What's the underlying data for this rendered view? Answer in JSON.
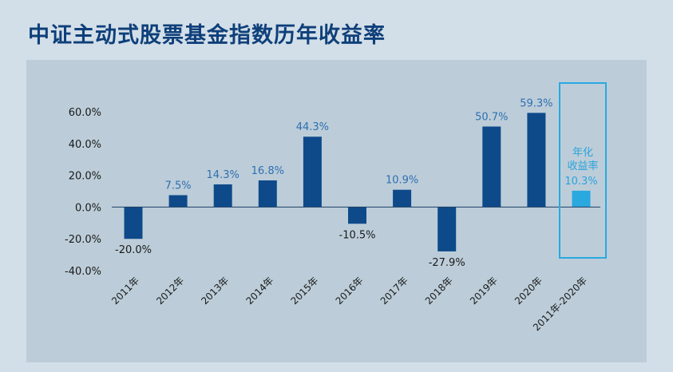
{
  "title": "中证主动式股票基金指数历年收益率",
  "chart_data": {
    "type": "bar",
    "title": "中证主动式股票基金指数历年收益率",
    "categories": [
      "2011年",
      "2012年",
      "2013年",
      "2014年",
      "2015年",
      "2016年",
      "2017年",
      "2018年",
      "2019年",
      "2020年",
      "2011年-2020年"
    ],
    "values": [
      -20.0,
      7.5,
      14.3,
      16.8,
      44.3,
      -10.5,
      10.9,
      -27.9,
      50.7,
      59.3,
      10.3
    ],
    "value_labels": [
      "-20.0%",
      "7.5%",
      "14.3%",
      "16.8%",
      "44.3%",
      "-10.5%",
      "10.9%",
      "-27.9%",
      "50.7%",
      "59.3%",
      "10.3%"
    ],
    "ylim": [
      -40,
      60
    ],
    "yticks": [
      60,
      40,
      20,
      0,
      -20,
      -40
    ],
    "ytick_labels": [
      "60.0%",
      "40.0%",
      "20.0%",
      "0.0%",
      "-20.0%",
      "-40.0%"
    ],
    "highlight": {
      "category": "2011年-2020年",
      "annotation_line1": "年化",
      "annotation_line2": "收益率"
    },
    "colors": {
      "bar": "#0e4a8a",
      "highlight_bar": "#29a9e0",
      "label_positive": "#2f6fb0",
      "label_negative": "#1a1a1a",
      "highlight_label": "#2ba3dc",
      "highlight_box": "#29a9e0"
    },
    "grid": false
  }
}
